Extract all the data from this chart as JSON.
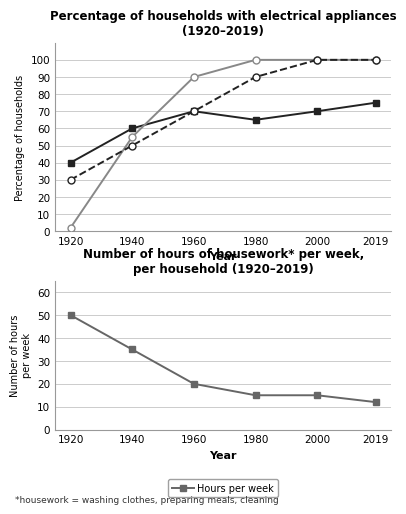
{
  "years": [
    1920,
    1940,
    1960,
    1980,
    2000,
    2019
  ],
  "washing_machine": [
    40,
    60,
    70,
    65,
    70,
    75
  ],
  "refrigerator": [
    2,
    55,
    90,
    100,
    100,
    100
  ],
  "vacuum_cleaner": [
    30,
    50,
    70,
    90,
    100,
    100
  ],
  "hours_per_week": [
    50,
    35,
    20,
    15,
    15,
    12
  ],
  "chart1_title": "Percentage of households with electrical appliances\n(1920–2019)",
  "chart1_ylabel": "Percentage of households",
  "chart1_xlabel": "Year",
  "chart1_ylim": [
    0,
    110
  ],
  "chart1_yticks": [
    0,
    10,
    20,
    30,
    40,
    50,
    60,
    70,
    80,
    90,
    100
  ],
  "chart2_title": "Number of hours of housework* per week,\nper household (1920–2019)",
  "chart2_ylabel": "Number of hours\nper week",
  "chart2_xlabel": "Year",
  "chart2_ylim": [
    0,
    65
  ],
  "chart2_yticks": [
    0,
    10,
    20,
    30,
    40,
    50,
    60
  ],
  "footnote": "*housework = washing clothes, preparing meals, cleaning",
  "line_color_wm": "#222222",
  "line_color_ref": "#888888",
  "line_color_vc": "#222222",
  "line_color_hours": "#666666"
}
